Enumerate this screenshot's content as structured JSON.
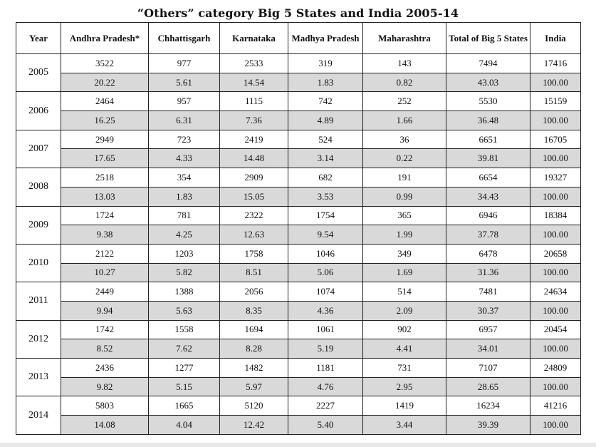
{
  "title": "“Others”  category Big 5 States and India 2005-14",
  "headers": [
    "Year",
    "Andhra Pradesh*",
    "Chhattisgarh",
    "Karnataka",
    "Madhya Pradesh",
    "Maharashtra",
    "Total of Big 5 States",
    "India"
  ],
  "rows": [
    {
      "year": "2005",
      "counts": [
        "3522",
        "977",
        "2533",
        "319",
        "143",
        "7494",
        "17416"
      ],
      "percents": [
        "20.22",
        "5.61",
        "14.54",
        "1.83",
        "0.82",
        "43.03",
        "100.00"
      ]
    },
    {
      "year": "2006",
      "counts": [
        "2464",
        "957",
        "1115",
        "742",
        "252",
        "5530",
        "15159"
      ],
      "percents": [
        "16.25",
        "6.31",
        "7.36",
        "4.89",
        "1.66",
        "36.48",
        "100.00"
      ]
    },
    {
      "year": "2007",
      "counts": [
        "2949",
        "723",
        "2419",
        "524",
        "36",
        "6651",
        "16705"
      ],
      "percents": [
        "17.65",
        "4.33",
        "14.48",
        "3.14",
        "0.22",
        "39.81",
        "100.00"
      ]
    },
    {
      "year": "2008",
      "counts": [
        "2518",
        "354",
        "2909",
        "682",
        "191",
        "6654",
        "19327"
      ],
      "percents": [
        "13.03",
        "1.83",
        "15.05",
        "3.53",
        "0.99",
        "34.43",
        "100.00"
      ]
    },
    {
      "year": "2009",
      "counts": [
        "1724",
        "781",
        "2322",
        "1754",
        "365",
        "6946",
        "18384"
      ],
      "percents": [
        "9.38",
        "4.25",
        "12.63",
        "9.54",
        "1.99",
        "37.78",
        "100.00"
      ]
    },
    {
      "year": "2010",
      "counts": [
        "2122",
        "1203",
        "1758",
        "1046",
        "349",
        "6478",
        "20658"
      ],
      "percents": [
        "10.27",
        "5.82",
        "8.51",
        "5.06",
        "1.69",
        "31.36",
        "100.00"
      ]
    },
    {
      "year": "2011",
      "counts": [
        "2449",
        "1388",
        "2056",
        "1074",
        "514",
        "7481",
        "24634"
      ],
      "percents": [
        "9.94",
        "5.63",
        "8.35",
        "4.36",
        "2.09",
        "30.37",
        "100.00"
      ]
    },
    {
      "year": "2012",
      "counts": [
        "1742",
        "1558",
        "1694",
        "1061",
        "902",
        "6957",
        "20454"
      ],
      "percents": [
        "8.52",
        "7.62",
        "8.28",
        "5.19",
        "4.41",
        "34.01",
        "100.00"
      ]
    },
    {
      "year": "2013",
      "counts": [
        "2436",
        "1277",
        "1482",
        "1181",
        "731",
        "7107",
        "24809"
      ],
      "percents": [
        "9.82",
        "5.15",
        "5.97",
        "4.76",
        "2.95",
        "28.65",
        "100.00"
      ]
    },
    {
      "year": "2014",
      "counts": [
        "5803",
        "1665",
        "5120",
        "2227",
        "1419",
        "16234",
        "41216"
      ],
      "percents": [
        "14.08",
        "4.04",
        "12.42",
        "5.40",
        "3.44",
        "39.39",
        "100.00"
      ]
    }
  ],
  "colors": {
    "shade": "#d9d9d9",
    "border": "#222222"
  }
}
